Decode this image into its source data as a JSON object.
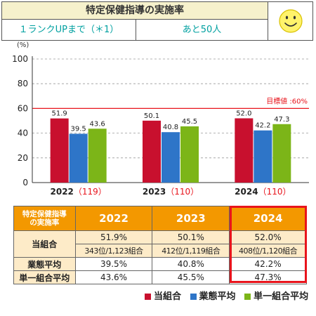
{
  "header": {
    "title": "特定保健指導の実施率",
    "rank_up": "１ランクUPまで（＊1）",
    "remaining": "あと50人"
  },
  "chart_data": {
    "type": "bar",
    "categories": [
      "2022",
      "2023",
      "2024"
    ],
    "category_counts": [
      "（119）",
      "（110）",
      "（110）"
    ],
    "series": [
      {
        "name": "当組合",
        "values": [
          51.9,
          50.1,
          52.0
        ],
        "color": "#c8102e"
      },
      {
        "name": "業態平均",
        "values": [
          39.5,
          40.8,
          42.2
        ],
        "color": "#2e75c8"
      },
      {
        "name": "単一組合平均",
        "values": [
          43.6,
          45.5,
          47.3
        ],
        "color": "#7cb518"
      }
    ],
    "value_labels": [
      [
        "51.9",
        "39.5",
        "43.6"
      ],
      [
        "50.1",
        "40.8",
        "45.5"
      ],
      [
        "52.0",
        "42.2",
        "47.3"
      ]
    ],
    "ylim": [
      0,
      100
    ],
    "yticks": [
      "0",
      "20",
      "40",
      "60",
      "80",
      "100"
    ],
    "ylabel": "(%)",
    "target": {
      "value": 60,
      "label": "目標値 :60%",
      "color": "#e8141c"
    },
    "grid": true,
    "legend_position": "bottom-right"
  },
  "table": {
    "corner": [
      "特定保健指導",
      "の実施率"
    ],
    "years": [
      "2022",
      "2023",
      "2024"
    ],
    "rows": [
      {
        "label": "当組合",
        "values": [
          "51.9%",
          "50.1%",
          "52.0%"
        ],
        "ranks": [
          "343位/1,123組合",
          "412位/1,119組合",
          "408位/1,120組合"
        ]
      },
      {
        "label": "業態平均",
        "values": [
          "39.5%",
          "40.8%",
          "42.2%"
        ]
      },
      {
        "label": "単一組合平均",
        "values": [
          "43.6%",
          "45.5%",
          "47.3%"
        ]
      }
    ]
  }
}
